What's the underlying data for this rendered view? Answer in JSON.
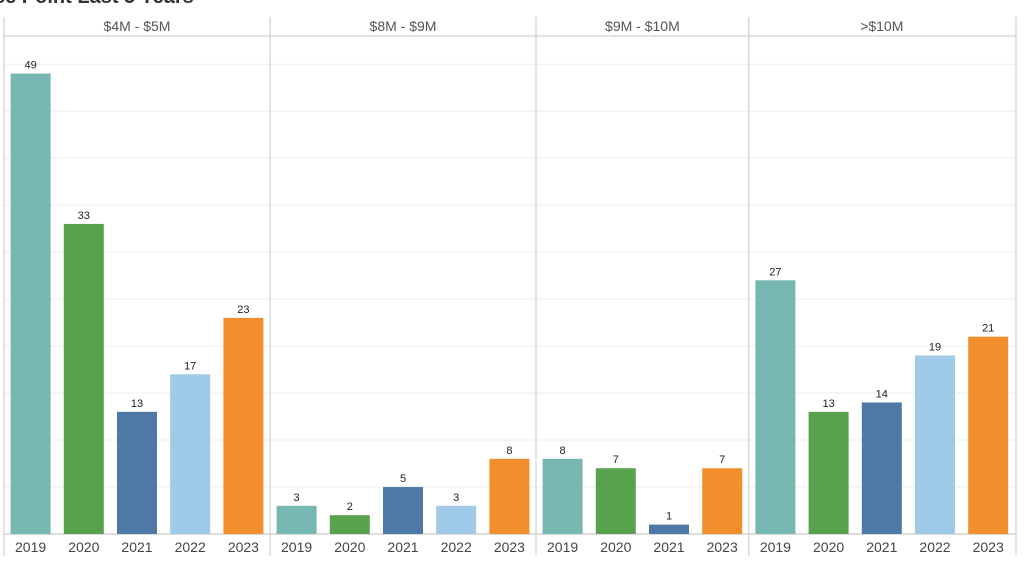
{
  "title": "se Point Last 5 Years",
  "chart_data": {
    "type": "bar",
    "title": "se Point Last 5 Years",
    "ylim": [
      0,
      53
    ],
    "grid": true,
    "panels": [
      {
        "label": "$4M - $5M",
        "categories": [
          "2019",
          "2020",
          "2021",
          "2022",
          "2023"
        ],
        "values": [
          49,
          33,
          13,
          17,
          23
        ]
      },
      {
        "label": "$8M - $9M",
        "categories": [
          "2019",
          "2020",
          "2021",
          "2022",
          "2023"
        ],
        "values": [
          3,
          2,
          5,
          3,
          8
        ]
      },
      {
        "label": "$9M - $10M",
        "categories": [
          "2019",
          "2020",
          "2021",
          "2023"
        ],
        "values": [
          8,
          7,
          1,
          7
        ]
      },
      {
        "label": ">$10M",
        "categories": [
          "2019",
          "2020",
          "2021",
          "2022",
          "2023"
        ],
        "values": [
          27,
          13,
          14,
          19,
          21
        ]
      }
    ],
    "colors": {
      "2019": "#76b7b2",
      "2020": "#59a14f",
      "2021": "#4e79a7",
      "2022": "#a0cbe8",
      "2023": "#f28e2b"
    }
  }
}
